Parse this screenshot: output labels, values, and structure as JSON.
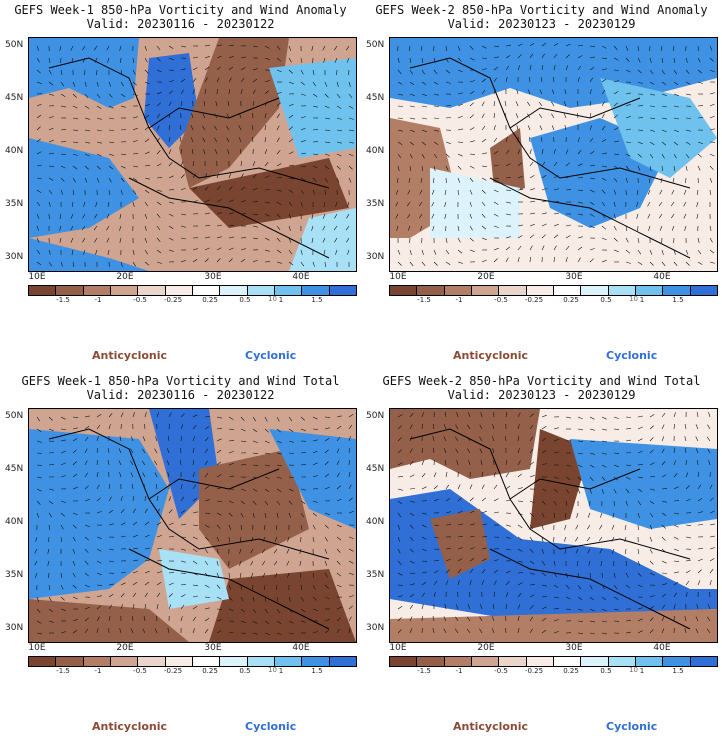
{
  "panels": [
    {
      "title": "GEFS Week-1 850-hPa Vorticity and Wind Anomaly",
      "valid": "Valid: 20230116 - 20230122"
    },
    {
      "title": "GEFS Week-2 850-hPa Vorticity and Wind Anomaly",
      "valid": "Valid: 20230123 - 20230129"
    },
    {
      "title": "GEFS Week-1 850-hPa Vorticity and Wind Total",
      "valid": "Valid: 20230116 - 20230122"
    },
    {
      "title": "GEFS Week-2 850-hPa Vorticity and Wind Total",
      "valid": "Valid: 20230123 - 20230129"
    }
  ],
  "lat_labels": [
    "50N",
    "45N",
    "40N",
    "35N",
    "30N"
  ],
  "lon_labels": [
    "10E",
    "20E",
    "30E",
    "40E"
  ],
  "colorbar": {
    "ticks": [
      "-1.5",
      "-1",
      "-0.5",
      "-0.25",
      "0.25",
      "0.5",
      "1",
      "1.5"
    ],
    "mid_label": "10",
    "colors": [
      "#7a4530",
      "#94604a",
      "#b37e66",
      "#cfa592",
      "#ead5cb",
      "#f7ece6",
      "#ffffff",
      "#dcf3fb",
      "#a8e0f5",
      "#6fc2ee",
      "#3f92e3",
      "#2f6fd6"
    ]
  },
  "legend": {
    "anticyclonic": "Anticyclonic",
    "cyclonic": "Cyclonic"
  }
}
